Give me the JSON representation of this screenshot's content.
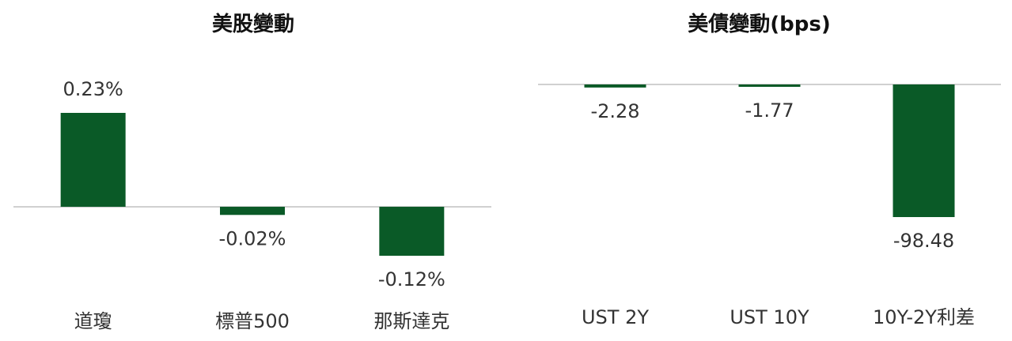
{
  "colors": {
    "bar": "#0a5a27",
    "axis": "#d0d0d0",
    "text": "#333333"
  },
  "chart_data": [
    {
      "type": "bar",
      "title": "美股變動",
      "categories": [
        "道瓊",
        "標普500",
        "那斯達克"
      ],
      "values": [
        0.23,
        -0.02,
        -0.12
      ],
      "data_labels": [
        "0.23%",
        "-0.02%",
        "-0.12%"
      ],
      "unit": "%",
      "xlabel": "",
      "ylabel": "",
      "grid": false,
      "legend": "none"
    },
    {
      "type": "bar",
      "title": "美債變動(bps)",
      "categories": [
        "UST 2Y",
        "UST 10Y",
        "10Y-2Y利差"
      ],
      "values": [
        -2.28,
        -1.77,
        -98.48
      ],
      "data_labels": [
        "-2.28",
        "-1.77",
        "-98.48"
      ],
      "unit": "bps",
      "xlabel": "",
      "ylabel": "",
      "grid": false,
      "legend": "none"
    }
  ]
}
